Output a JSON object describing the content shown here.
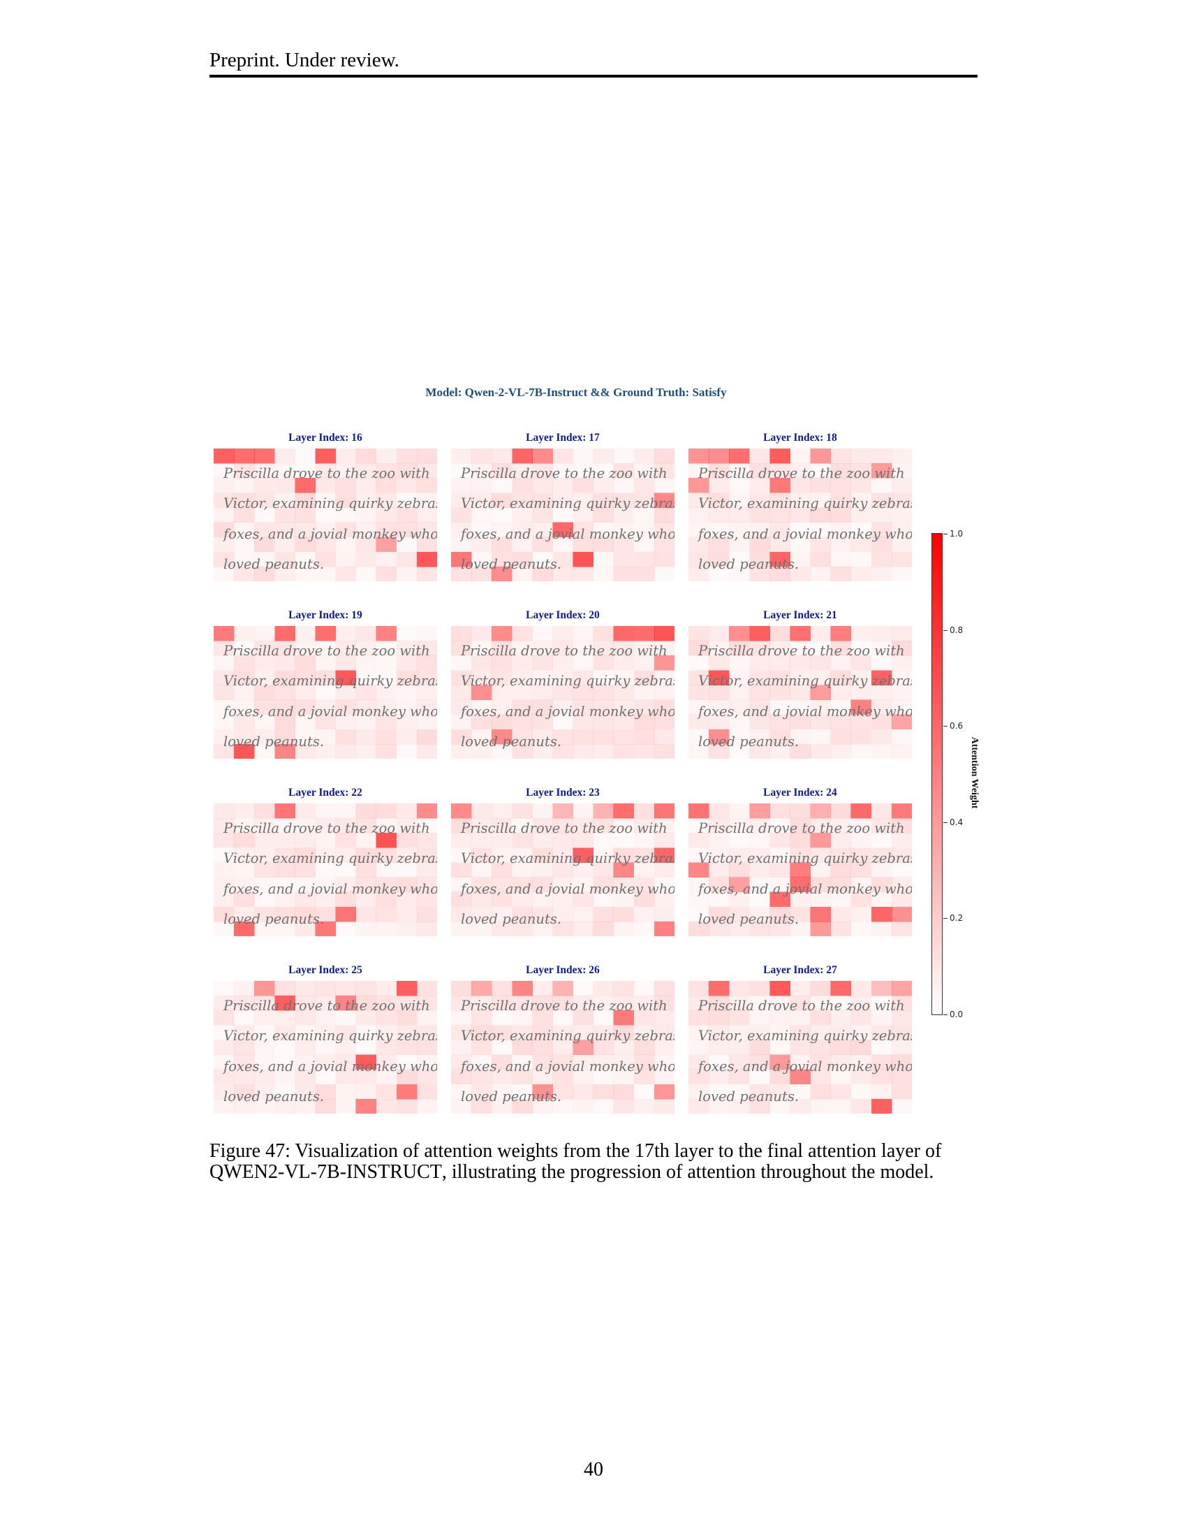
{
  "header": {
    "running_title": "Preprint. Under review."
  },
  "figure": {
    "title": "Model: Qwen-2-VL-7B-Instruct && Ground Truth: Satisfy",
    "panel_text_lines": [
      "Priscilla drove to the zoo with",
      "Victor, examining quirky zebras,",
      "foxes, and a jovial monkey who",
      "loved peanuts."
    ],
    "panels": [
      {
        "title": "Layer Index: 16"
      },
      {
        "title": "Layer Index: 17"
      },
      {
        "title": "Layer Index: 18"
      },
      {
        "title": "Layer Index: 19"
      },
      {
        "title": "Layer Index: 20"
      },
      {
        "title": "Layer Index: 21"
      },
      {
        "title": "Layer Index: 22"
      },
      {
        "title": "Layer Index: 23"
      },
      {
        "title": "Layer Index: 24"
      },
      {
        "title": "Layer Index: 25"
      },
      {
        "title": "Layer Index: 26"
      },
      {
        "title": "Layer Index: 27"
      }
    ],
    "colorbar": {
      "label": "Attention Weight",
      "ticks": [
        "0.0",
        "0.2",
        "0.4",
        "0.6",
        "0.8",
        "1.0"
      ],
      "color_low": "#ffffff",
      "color_high": "#ff0000"
    }
  },
  "caption": {
    "prefix": "Figure 47: Visualization of attention weights from the 17th layer to the final attention layer of ",
    "model_q": "Q",
    "model_wen": "WEN",
    "model_mid": "2-VL-7B-I",
    "model_nstruct": "NSTRUCT",
    "suffix": ", illustrating the progression of attention throughout the model."
  },
  "page_number": "40"
}
